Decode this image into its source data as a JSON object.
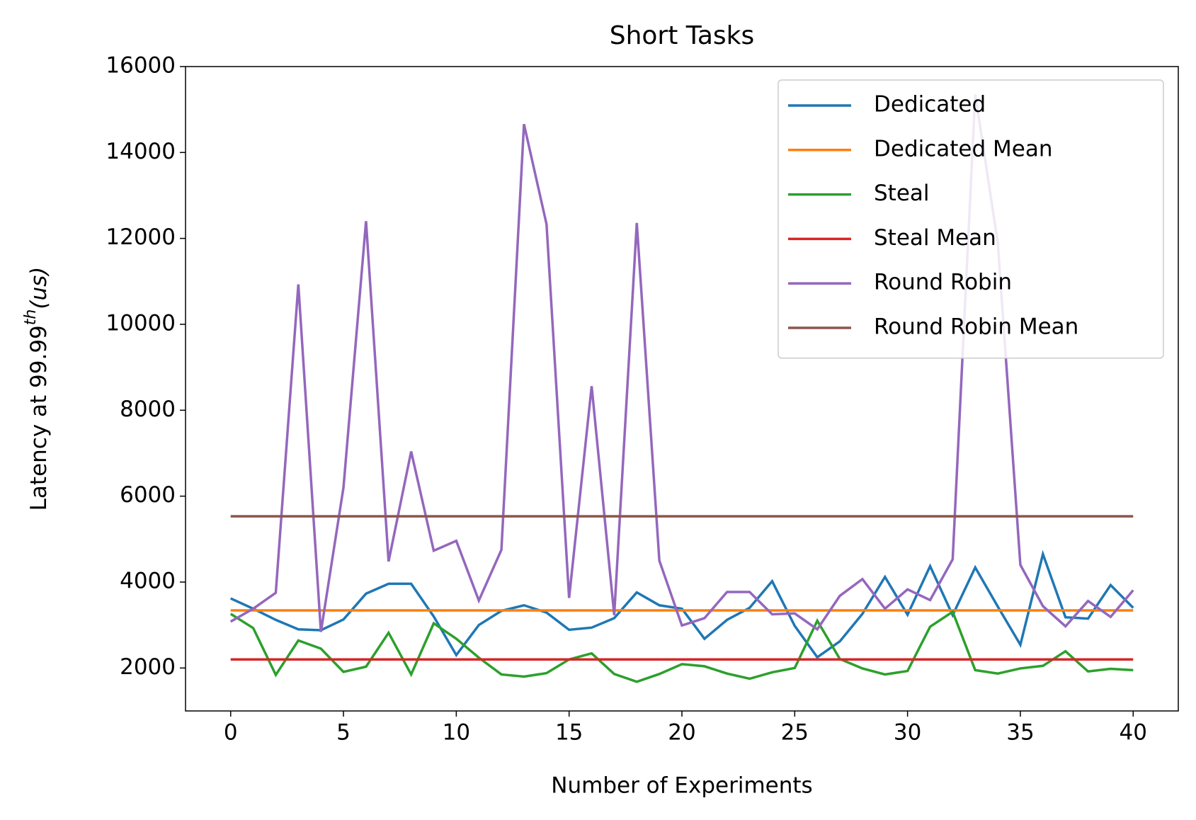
{
  "chart_data": {
    "type": "line",
    "title": "Short Tasks",
    "xlabel": "Number of Experiments",
    "ylabel": [
      "Latency at 99.99",
      "th",
      "(us)"
    ],
    "x": [
      0,
      1,
      2,
      3,
      4,
      5,
      6,
      7,
      8,
      9,
      10,
      11,
      12,
      13,
      14,
      15,
      16,
      17,
      18,
      19,
      20,
      21,
      22,
      23,
      24,
      25,
      26,
      27,
      28,
      29,
      30,
      31,
      32,
      33,
      34,
      35,
      36,
      37,
      38,
      39,
      40
    ],
    "xlim": [
      -2,
      42
    ],
    "xticks": [
      0,
      5,
      10,
      15,
      20,
      25,
      30,
      35,
      40
    ],
    "ylim": [
      1000,
      16000
    ],
    "yticks": [
      2000,
      4000,
      6000,
      8000,
      10000,
      12000,
      14000,
      16000
    ],
    "grid": false,
    "legend": "upper right",
    "series": [
      {
        "name": "Dedicated",
        "color": "#1f77b4",
        "values": [
          3620,
          3380,
          3120,
          2900,
          2880,
          3130,
          3730,
          3960,
          3960,
          3200,
          2300,
          3000,
          3330,
          3460,
          3290,
          2890,
          2940,
          3160,
          3760,
          3460,
          3380,
          2680,
          3120,
          3400,
          4020,
          2980,
          2250,
          2620,
          3260,
          4120,
          3240,
          4370,
          3230,
          4340,
          3430,
          2540,
          4650,
          3180,
          3150,
          3930,
          3400
        ]
      },
      {
        "name": "Dedicated Mean",
        "color": "#ff7f0e",
        "x": [
          0,
          40
        ],
        "values": [
          3340,
          3340
        ]
      },
      {
        "name": "Steal",
        "color": "#2ca02c",
        "values": [
          3260,
          2930,
          1840,
          2640,
          2450,
          1910,
          2030,
          2820,
          1850,
          3040,
          2680,
          2240,
          1850,
          1800,
          1880,
          2200,
          2340,
          1860,
          1680,
          1860,
          2090,
          2040,
          1870,
          1750,
          1900,
          2000,
          3100,
          2210,
          1990,
          1850,
          1930,
          2960,
          3310,
          1950,
          1870,
          1990,
          2050,
          2390,
          1920,
          1980,
          1950
        ]
      },
      {
        "name": "Steal Mean",
        "color": "#d62728",
        "x": [
          0,
          40
        ],
        "values": [
          2200,
          2200
        ]
      },
      {
        "name": "Round Robin",
        "color": "#9467bd",
        "values": [
          3080,
          3380,
          3750,
          10930,
          2840,
          6200,
          12400,
          4480,
          7040,
          4730,
          4960,
          3570,
          4750,
          14660,
          12330,
          3630,
          8560,
          3230,
          12360,
          4500,
          2990,
          3160,
          3770,
          3770,
          3250,
          3270,
          2900,
          3680,
          4070,
          3380,
          3830,
          3580,
          4530,
          15350,
          11900,
          4400,
          3440,
          2970,
          3560,
          3190,
          3810
        ]
      },
      {
        "name": "Round Robin Mean",
        "color": "#8c564b",
        "x": [
          0,
          40
        ],
        "values": [
          5530,
          5530
        ]
      }
    ]
  }
}
